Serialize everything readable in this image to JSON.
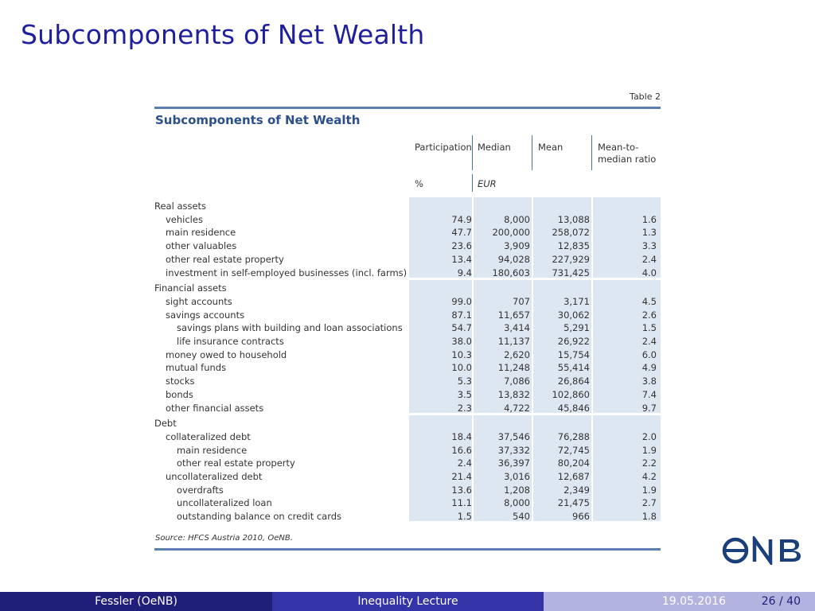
{
  "slide": {
    "title": "Subcomponents of Net Wealth"
  },
  "table": {
    "label": "Table 2",
    "title": "Subcomponents of Net Wealth",
    "headers": [
      "Participation",
      "Median",
      "Mean",
      "Mean-to-\nmedian ratio"
    ],
    "units": {
      "participation": "%",
      "median": "EUR"
    },
    "groups": [
      {
        "name": "Real assets",
        "rows": [
          {
            "label": "vehicles",
            "indent": 1,
            "values": [
              "74.9",
              "8,000",
              "13,088",
              "1.6"
            ]
          },
          {
            "label": "main residence",
            "indent": 1,
            "values": [
              "47.7",
              "200,000",
              "258,072",
              "1.3"
            ]
          },
          {
            "label": "other valuables",
            "indent": 1,
            "values": [
              "23.6",
              "3,909",
              "12,835",
              "3.3"
            ]
          },
          {
            "label": "other real estate property",
            "indent": 1,
            "values": [
              "13.4",
              "94,028",
              "227,929",
              "2.4"
            ]
          },
          {
            "label": "investment in self-employed businesses (incl. farms)",
            "indent": 1,
            "values": [
              "9.4",
              "180,603",
              "731,425",
              "4.0"
            ]
          }
        ]
      },
      {
        "name": "Financial assets",
        "rows": [
          {
            "label": "sight accounts",
            "indent": 1,
            "values": [
              "99.0",
              "707",
              "3,171",
              "4.5"
            ]
          },
          {
            "label": "savings accounts",
            "indent": 1,
            "values": [
              "87.1",
              "11,657",
              "30,062",
              "2.6"
            ]
          },
          {
            "label": "savings plans with building and loan associations",
            "indent": 2,
            "values": [
              "54.7",
              "3,414",
              "5,291",
              "1.5"
            ]
          },
          {
            "label": "life insurance contracts",
            "indent": 2,
            "values": [
              "38.0",
              "11,137",
              "26,922",
              "2.4"
            ]
          },
          {
            "label": "money owed to household",
            "indent": 1,
            "values": [
              "10.3",
              "2,620",
              "15,754",
              "6.0"
            ]
          },
          {
            "label": "mutual funds",
            "indent": 1,
            "values": [
              "10.0",
              "11,248",
              "55,414",
              "4.9"
            ]
          },
          {
            "label": "stocks",
            "indent": 1,
            "values": [
              "5.3",
              "7,086",
              "26,864",
              "3.8"
            ]
          },
          {
            "label": "bonds",
            "indent": 1,
            "values": [
              "3.5",
              "13,832",
              "102,860",
              "7.4"
            ]
          },
          {
            "label": "other financial assets",
            "indent": 1,
            "values": [
              "2.3",
              "4,722",
              "45,846",
              "9.7"
            ]
          }
        ]
      },
      {
        "name": "Debt",
        "rows": [
          {
            "label": "collateralized debt",
            "indent": 1,
            "values": [
              "18.4",
              "37,546",
              "76,288",
              "2.0"
            ]
          },
          {
            "label": "main residence",
            "indent": 2,
            "values": [
              "16.6",
              "37,332",
              "72,745",
              "1.9"
            ]
          },
          {
            "label": "other real estate property",
            "indent": 2,
            "values": [
              "2.4",
              "36,397",
              "80,204",
              "2.2"
            ]
          },
          {
            "label": "uncollateralized debt",
            "indent": 1,
            "values": [
              "21.4",
              "3,016",
              "12,687",
              "4.2"
            ]
          },
          {
            "label": "overdrafts",
            "indent": 2,
            "values": [
              "13.6",
              "1,208",
              "2,349",
              "1.9"
            ]
          },
          {
            "label": "uncollateralized loan",
            "indent": 2,
            "values": [
              "11.1",
              "8,000",
              "21,475",
              "2.7"
            ]
          },
          {
            "label": "outstanding balance on credit cards",
            "indent": 2,
            "values": [
              "1.5",
              "540",
              "966",
              "1.8"
            ]
          }
        ]
      }
    ],
    "source": "Source: HFCS Austria 2010, OeNB."
  },
  "logo": {
    "text": "ONB",
    "icon": "oenb-logo-icon"
  },
  "footer": {
    "author": "Fessler  (OeNB)",
    "course": "Inequality Lecture",
    "date": "19.05.2016",
    "page": "26 / 40"
  },
  "colors": {
    "title": "#1f1f9e",
    "table_accent": "#5b7fb3",
    "shade": "#dde7f2",
    "footer_dark": "#1f1f7a"
  }
}
